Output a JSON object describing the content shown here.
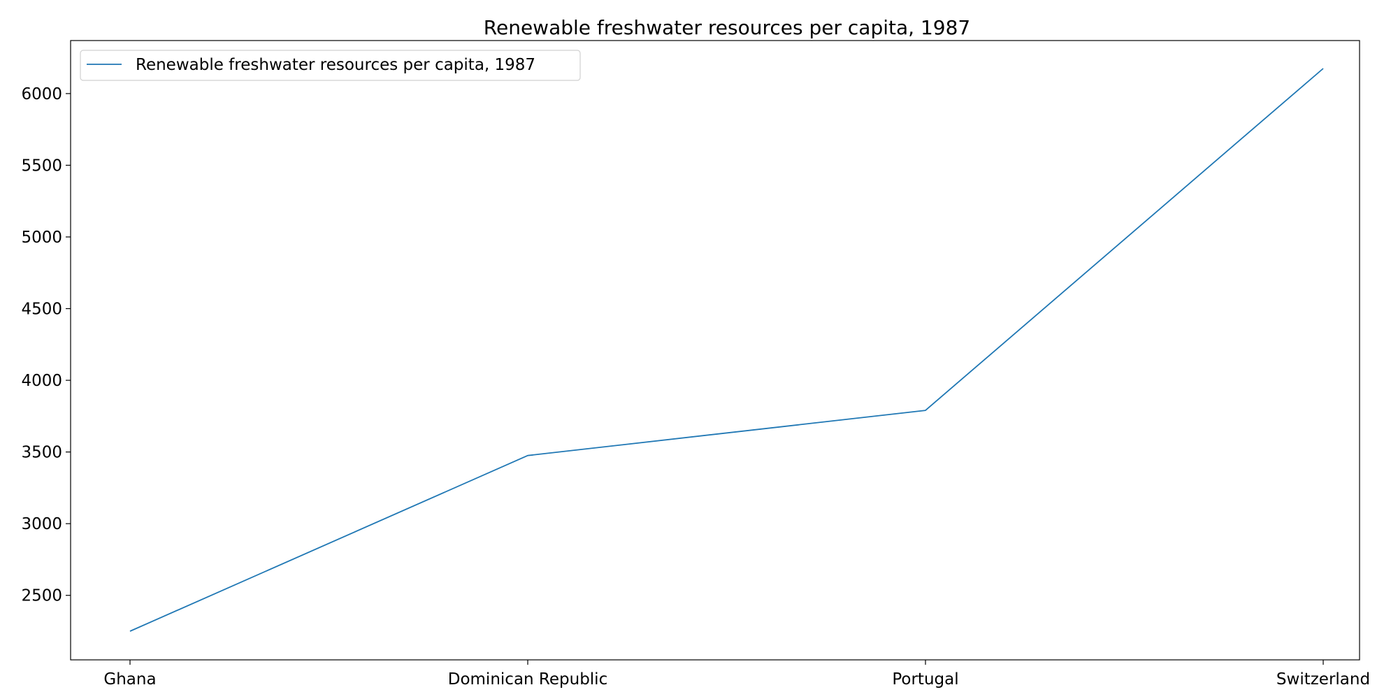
{
  "chart_data": {
    "type": "line",
    "title": "Renewable freshwater resources per capita, 1987",
    "xlabel": "",
    "ylabel": "",
    "categories": [
      "Ghana",
      "Dominican Republic",
      "Portugal",
      "Switzerland"
    ],
    "series": [
      {
        "name": "Renewable freshwater resources per capita, 1987",
        "values": [
          2250,
          3475,
          3790,
          6175
        ],
        "color": "#1f77b4"
      }
    ],
    "ylim": [
      2050,
      6370
    ],
    "yticks": [
      2500,
      3000,
      3500,
      4000,
      4500,
      5000,
      5500,
      6000
    ],
    "grid": false,
    "legend_position": "top-left"
  }
}
